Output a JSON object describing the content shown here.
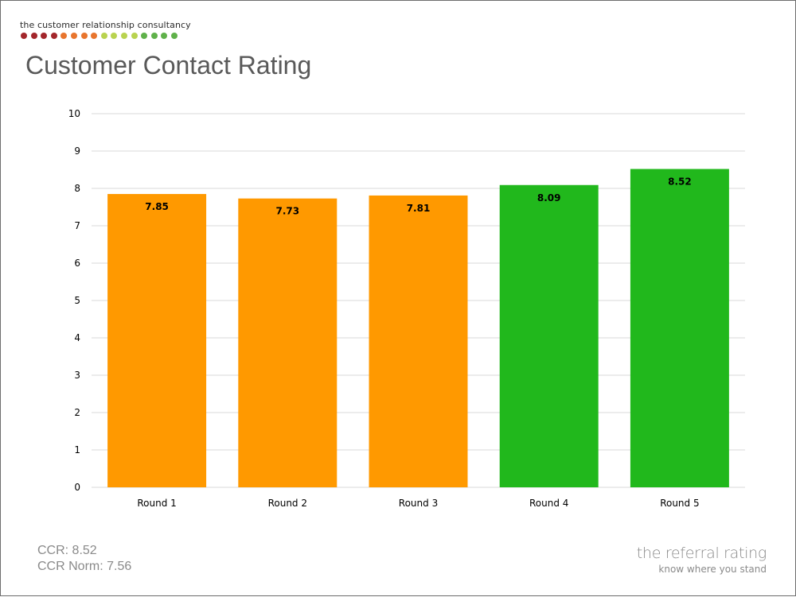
{
  "brand": {
    "name": "the customer relationship consultancy",
    "dot_colors": [
      "#a3262b",
      "#a3262b",
      "#a3262b",
      "#a3262b",
      "#e8752d",
      "#e8752d",
      "#e8752d",
      "#e8752d",
      "#b9d34f",
      "#b9d34f",
      "#b9d34f",
      "#b9d34f",
      "#5fb14a",
      "#5fb14a",
      "#5fb14a",
      "#5fb14a"
    ]
  },
  "title": "Customer Contact Rating",
  "chart_data": {
    "type": "bar",
    "categories": [
      "Round 1",
      "Round 2",
      "Round 3",
      "Round 4",
      "Round 5"
    ],
    "values": [
      7.85,
      7.73,
      7.81,
      8.09,
      8.52
    ],
    "value_labels": [
      "7.85",
      "7.73",
      "7.81",
      "8.09",
      "8.52"
    ],
    "bar_colors": [
      "#ff9900",
      "#ff9900",
      "#ff9900",
      "#21b81c",
      "#21b81c"
    ],
    "ylim": [
      0,
      10
    ],
    "yticks": [
      "0",
      "1",
      "2",
      "3",
      "4",
      "5",
      "6",
      "7",
      "8",
      "9",
      "10"
    ],
    "grid": true,
    "xlabel": "",
    "ylabel": "",
    "title": ""
  },
  "footer": {
    "ccr": "CCR: 8.52",
    "ccr_norm": "CCR Norm: 7.56",
    "tagline": "the referral rating",
    "tagline_sub": "know where you stand"
  }
}
